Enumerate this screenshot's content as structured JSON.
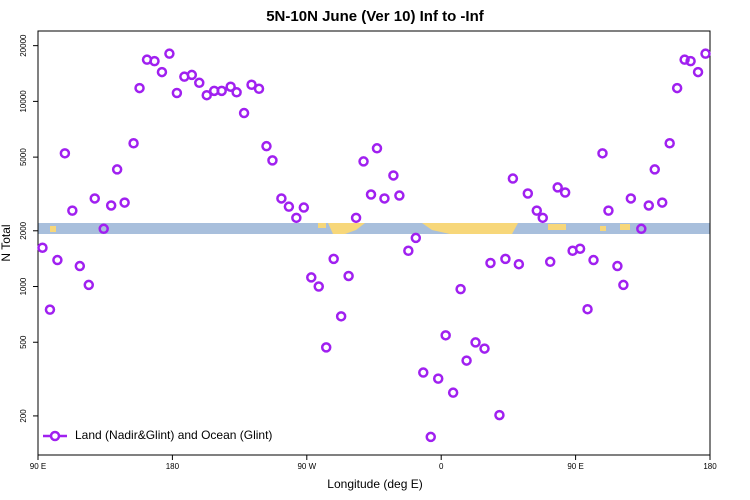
{
  "chart_data": {
    "type": "scatter",
    "title": "5N-10N June (Ver 10)   Inf to -Inf",
    "xlabel": "Longitude (deg E)",
    "ylabel": "N Total",
    "xlim": [
      90,
      540
    ],
    "xticks": [
      {
        "value": 90,
        "label": "90 E"
      },
      {
        "value": 180,
        "label": "180"
      },
      {
        "value": 270,
        "label": "90 W"
      },
      {
        "value": 360,
        "label": "0"
      },
      {
        "value": 450,
        "label": "90 E"
      },
      {
        "value": 540,
        "label": "180"
      }
    ],
    "ylim": [
      123,
      24000
    ],
    "yticks": [
      200,
      500,
      1000,
      2000,
      5000,
      10000,
      20000
    ],
    "log_y": true,
    "legend": "bottom-left",
    "series": [
      {
        "name": "Land (Nadir&Glint) and Ocean (Glint)",
        "color": "#a020f0",
        "x": [
          93,
          98,
          103,
          108,
          113,
          118,
          124,
          128,
          134,
          139,
          143,
          148,
          154,
          158,
          163,
          168,
          173,
          178,
          183,
          188,
          193,
          198,
          203,
          208,
          213,
          219,
          223,
          228,
          233,
          238,
          243,
          247,
          253,
          258,
          263,
          268,
          273,
          278,
          283,
          288,
          293,
          298,
          303,
          308,
          313,
          317,
          322,
          328,
          332,
          338,
          343,
          348,
          353,
          358,
          363,
          368,
          373,
          377,
          383,
          389,
          393,
          399,
          403,
          408,
          412,
          418,
          424,
          428,
          433,
          438,
          443,
          448,
          453,
          458,
          462,
          468,
          472,
          478,
          482,
          487,
          494,
          499,
          503,
          508,
          513,
          518,
          523,
          527,
          532,
          537
        ],
        "values": [
          1620,
          750,
          1390,
          5240,
          2570,
          1290,
          1020,
          2990,
          2050,
          2740,
          4290,
          2840,
          5940,
          11800,
          16800,
          16500,
          14400,
          18100,
          11100,
          13600,
          13900,
          12600,
          10800,
          11400,
          11400,
          12000,
          11200,
          8650,
          12300,
          11700,
          5730,
          4800,
          2990,
          2700,
          2350,
          2670,
          1120,
          1000,
          469,
          1410,
          690,
          1140,
          2350,
          4740,
          3140,
          5580,
          2990,
          3980,
          3100,
          1560,
          1830,
          343,
          154,
          318,
          545,
          267,
          968,
          398,
          499,
          462,
          1340,
          202,
          1410,
          3830,
          1320,
          3180,
          2570,
          2350,
          1360,
          3430,
          3220,
          1560,
          1600,
          754,
          1390,
          5240,
          2570,
          1290,
          1020,
          2990,
          2050,
          2740,
          4290,
          2840,
          5940,
          11800,
          16800,
          16500,
          14400,
          18100
        ]
      }
    ]
  }
}
